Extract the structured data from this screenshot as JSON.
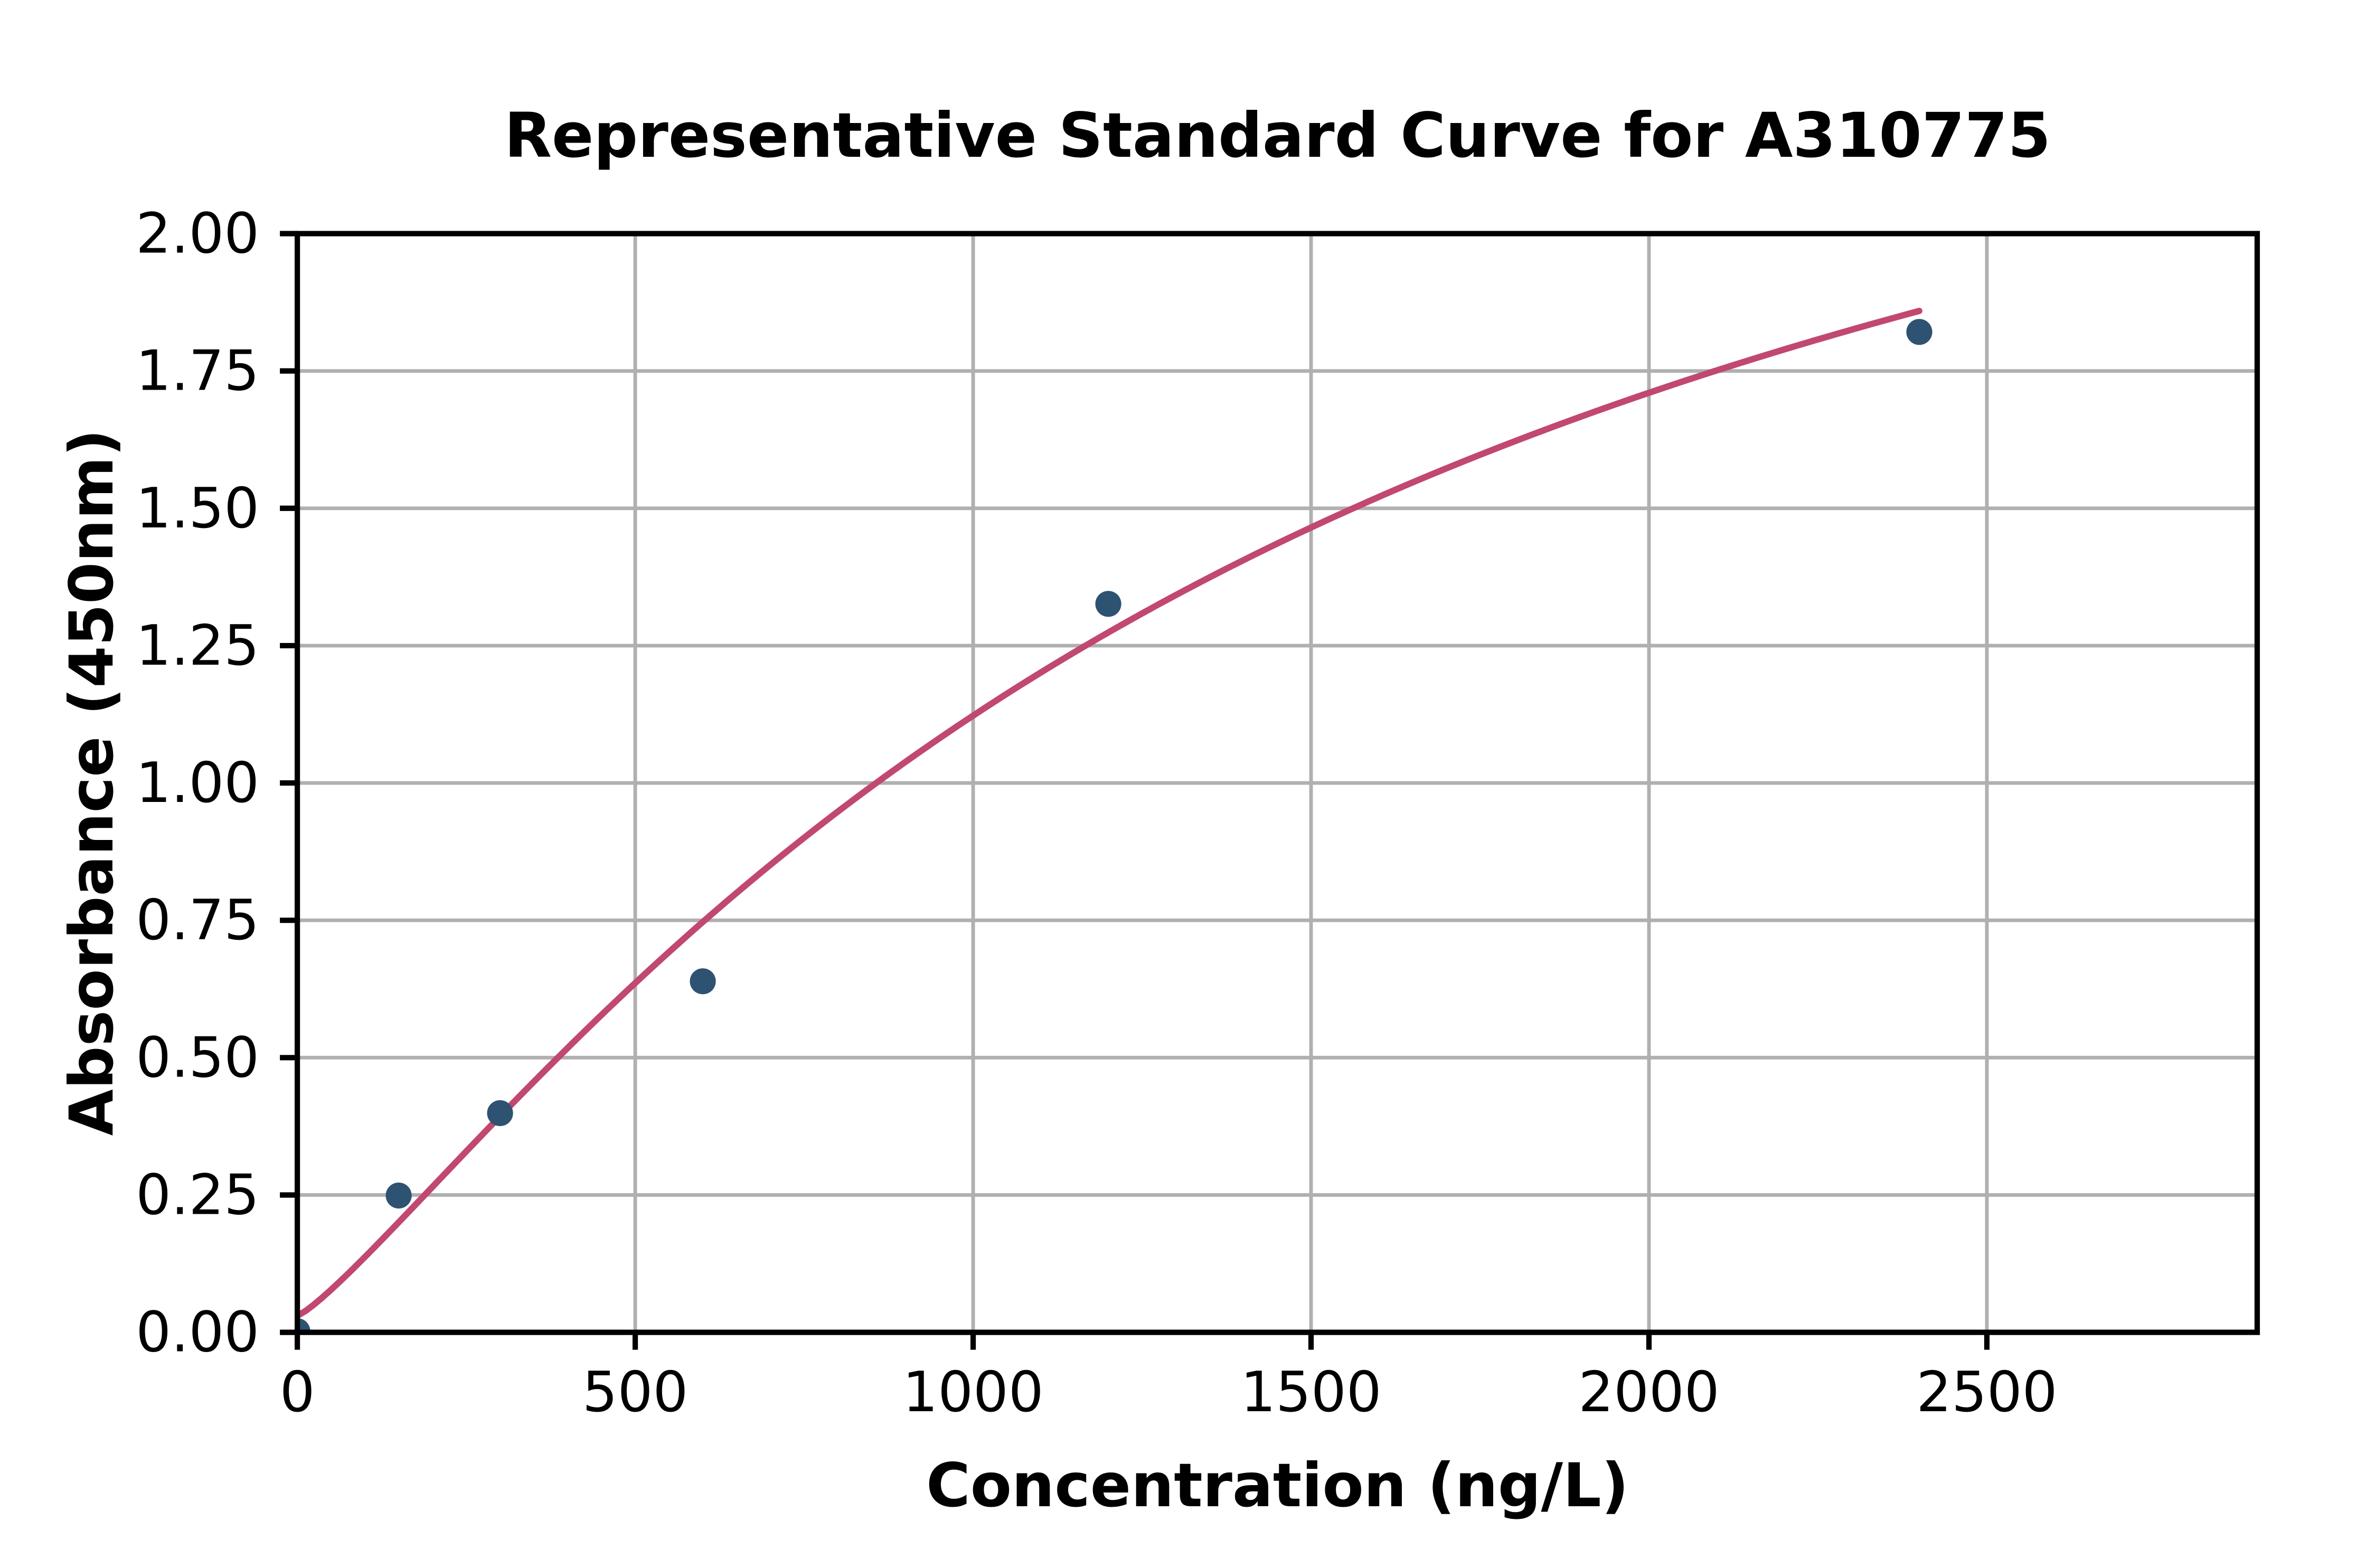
{
  "chart_data": {
    "type": "scatter",
    "title": "Representative Standard Curve for A310775",
    "xlabel": "Concentration (ng/L)",
    "ylabel": "Absorbance (450nm)",
    "xlim": [
      0,
      2900
    ],
    "ylim": [
      0,
      2.0
    ],
    "x_tick_labels": [
      "0",
      "500",
      "1000",
      "1500",
      "2000",
      "2500"
    ],
    "y_tick_labels": [
      "0.00",
      "0.25",
      "0.50",
      "0.75",
      "1.00",
      "1.25",
      "1.50",
      "1.75",
      "2.00"
    ],
    "grid": true,
    "legend": "none",
    "points": [
      {
        "x": 0,
        "y": 0.002
      },
      {
        "x": 150,
        "y": 0.249
      },
      {
        "x": 300,
        "y": 0.399
      },
      {
        "x": 600,
        "y": 0.639
      },
      {
        "x": 1200,
        "y": 1.326
      },
      {
        "x": 2400,
        "y": 1.821
      }
    ],
    "fit_curve": {
      "model": "4PL",
      "params": {
        "a": 0.03,
        "b": 1.2,
        "c": 1500,
        "d": 2.9
      },
      "x_range": [
        0,
        2400
      ],
      "sampled_values": [
        {
          "x": 0,
          "y": 0.03
        },
        {
          "x": 150,
          "y": 0.2
        },
        {
          "x": 300,
          "y": 0.39
        },
        {
          "x": 600,
          "y": 0.75
        },
        {
          "x": 900,
          "y": 1.03
        },
        {
          "x": 1200,
          "y": 1.27
        },
        {
          "x": 1500,
          "y": 1.47
        },
        {
          "x": 1800,
          "y": 1.62
        },
        {
          "x": 2100,
          "y": 1.75
        },
        {
          "x": 2400,
          "y": 1.86
        }
      ]
    },
    "colors": {
      "curve": "#c1486f",
      "marker": "#2e5272",
      "grid": "#b0b0b0",
      "spine": "#000000",
      "background": "#ffffff",
      "text": "#000000"
    }
  }
}
